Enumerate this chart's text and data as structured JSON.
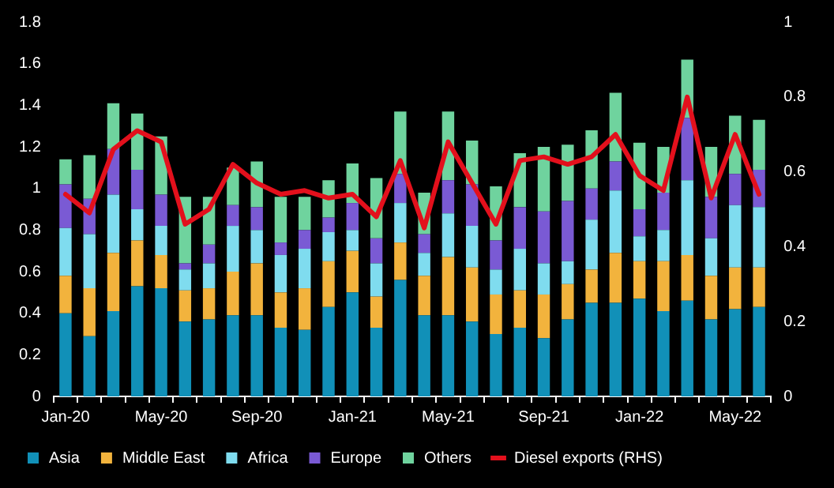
{
  "chart_data": {
    "type": "bar",
    "stacked": true,
    "grid": false,
    "legend": "bottom",
    "categories": [
      "Jan-20",
      null,
      null,
      null,
      "May-20",
      null,
      null,
      null,
      "Sep-20",
      null,
      null,
      null,
      "Jan-21",
      null,
      null,
      null,
      "May-21",
      null,
      null,
      null,
      "Sep-21",
      null,
      null,
      null,
      "Jan-22",
      null,
      null,
      null,
      "May-22",
      null
    ],
    "ylim": [
      0,
      1.8
    ],
    "yticks": [
      0,
      0.2,
      0.4,
      0.6,
      0.8,
      1,
      1.2,
      1.4,
      1.6,
      1.8
    ],
    "y2lim": [
      0,
      1
    ],
    "y2ticks": [
      0,
      0.2,
      0.4,
      0.6,
      0.8,
      1
    ],
    "series": [
      {
        "name": "Asia",
        "color": "#1190b8",
        "values": [
          0.4,
          0.29,
          0.41,
          0.53,
          0.52,
          0.36,
          0.37,
          0.39,
          0.39,
          0.33,
          0.32,
          0.43,
          0.5,
          0.33,
          0.56,
          0.39,
          0.39,
          0.36,
          0.3,
          0.33,
          0.28,
          0.37,
          0.45,
          0.45,
          0.47,
          0.41,
          0.46,
          0.37,
          0.42,
          0.43
        ]
      },
      {
        "name": "Middle East",
        "color": "#f2b33d",
        "values": [
          0.18,
          0.23,
          0.28,
          0.22,
          0.16,
          0.15,
          0.15,
          0.21,
          0.25,
          0.17,
          0.2,
          0.22,
          0.2,
          0.15,
          0.18,
          0.19,
          0.28,
          0.26,
          0.19,
          0.18,
          0.21,
          0.17,
          0.16,
          0.24,
          0.18,
          0.24,
          0.22,
          0.21,
          0.2,
          0.19
        ]
      },
      {
        "name": "Africa",
        "color": "#7fdcef",
        "values": [
          0.23,
          0.26,
          0.28,
          0.15,
          0.14,
          0.1,
          0.12,
          0.22,
          0.16,
          0.18,
          0.19,
          0.14,
          0.1,
          0.16,
          0.19,
          0.11,
          0.21,
          0.2,
          0.12,
          0.2,
          0.15,
          0.11,
          0.24,
          0.3,
          0.12,
          0.15,
          0.36,
          0.18,
          0.3,
          0.29
        ]
      },
      {
        "name": "Europe",
        "color": "#7a5ad4",
        "values": [
          0.21,
          0.17,
          0.22,
          0.19,
          0.15,
          0.03,
          0.09,
          0.1,
          0.11,
          0.06,
          0.09,
          0.07,
          0.13,
          0.12,
          0.14,
          0.09,
          0.16,
          0.2,
          0.14,
          0.2,
          0.25,
          0.29,
          0.15,
          0.14,
          0.13,
          0.18,
          0.3,
          0.2,
          0.15,
          0.18
        ]
      },
      {
        "name": "Others",
        "color": "#6fd39e",
        "values": [
          0.12,
          0.21,
          0.22,
          0.27,
          0.28,
          0.32,
          0.23,
          0.18,
          0.22,
          0.22,
          0.16,
          0.18,
          0.19,
          0.29,
          0.3,
          0.2,
          0.33,
          0.21,
          0.26,
          0.26,
          0.31,
          0.27,
          0.28,
          0.33,
          0.32,
          0.22,
          0.28,
          0.24,
          0.28,
          0.24
        ]
      },
      {
        "name": "Diesel exports (RHS)",
        "type": "line",
        "axis": "y2",
        "color": "#e3101c",
        "values": [
          0.54,
          0.49,
          0.66,
          0.71,
          0.68,
          0.46,
          0.5,
          0.62,
          0.57,
          0.54,
          0.55,
          0.53,
          0.54,
          0.48,
          0.63,
          0.45,
          0.68,
          0.57,
          0.46,
          0.63,
          0.64,
          0.62,
          0.64,
          0.7,
          0.59,
          0.55,
          0.8,
          0.53,
          0.7,
          0.54
        ]
      }
    ]
  }
}
